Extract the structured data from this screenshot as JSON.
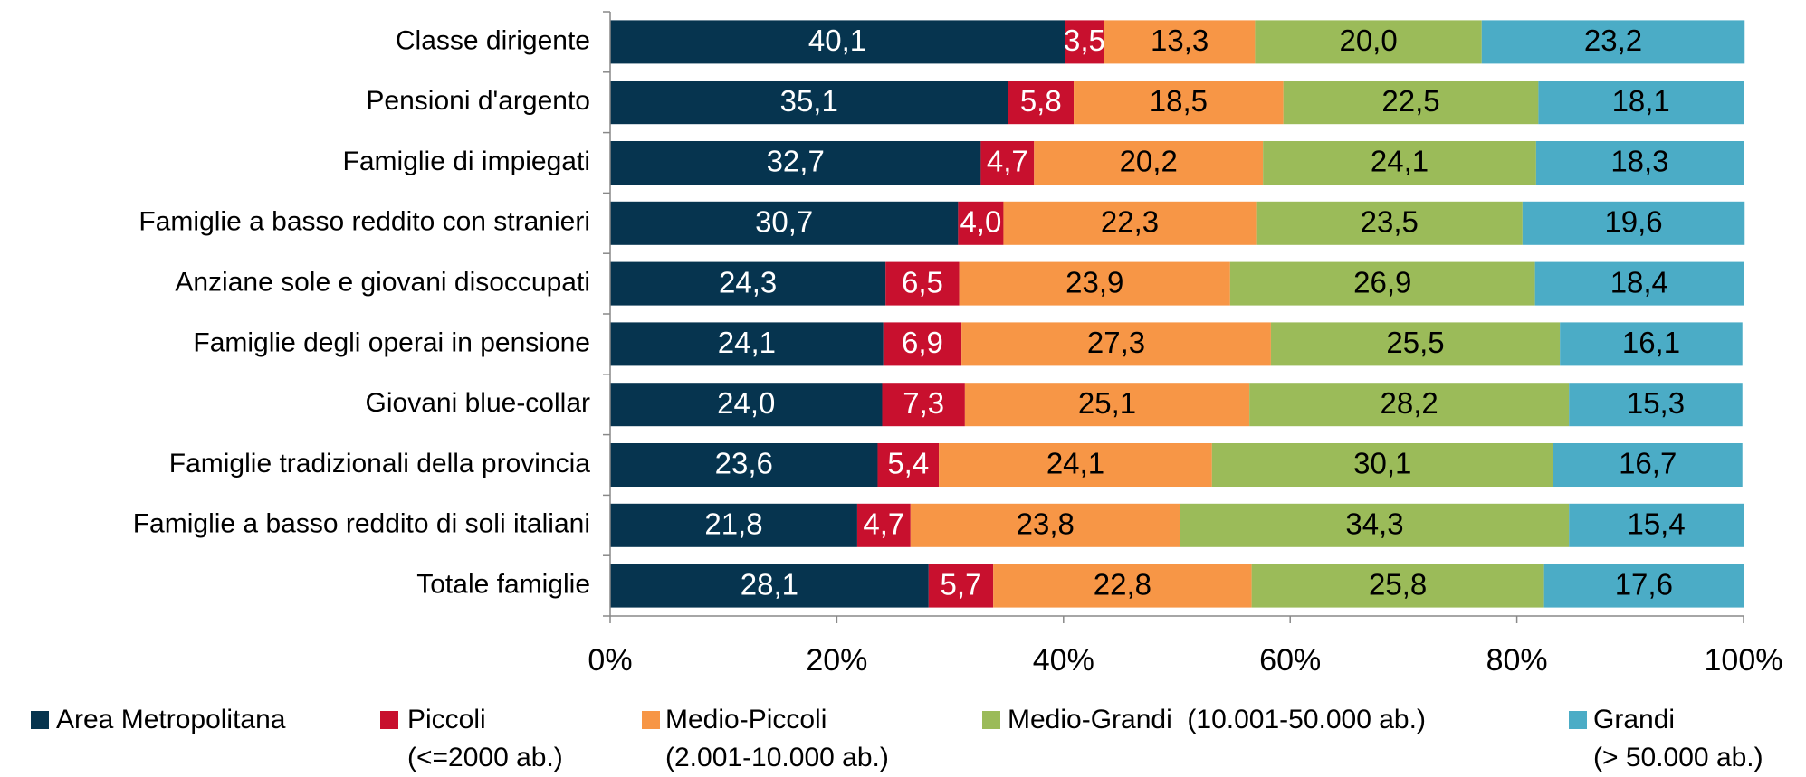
{
  "chart_data": {
    "type": "stacked-bar-horizontal",
    "categories": [
      "Classe dirigente",
      "Pensioni d'argento",
      "Famiglie di impiegati",
      "Famiglie a basso reddito con stranieri",
      "Anziane sole e giovani disoccupati",
      "Famiglie degli operai in pensione",
      "Giovani blue-collar",
      "Famiglie tradizionali della provincia",
      "Famiglie a basso reddito di soli italiani",
      "Totale famiglie"
    ],
    "series": [
      {
        "name": "Area Metropolitana",
        "color": "#06344f",
        "values": [
          40.1,
          35.1,
          32.7,
          30.7,
          24.3,
          24.1,
          24.0,
          23.6,
          21.8,
          28.1
        ],
        "value_labels": [
          "40,1",
          "35,1",
          "32,7",
          "30,7",
          "24,3",
          "24,1",
          "24,0",
          "23,6",
          "21,8",
          "28,1"
        ]
      },
      {
        "name": "Piccoli\n(<=2000 ab.)",
        "color": "#c8102e",
        "values": [
          3.5,
          5.8,
          4.7,
          4.0,
          6.5,
          6.9,
          7.3,
          5.4,
          4.7,
          5.7
        ],
        "value_labels": [
          "3,5",
          "5,8",
          "4,7",
          "4,0",
          "6,5",
          "6,9",
          "7,3",
          "5,4",
          "4,7",
          "5,7"
        ]
      },
      {
        "name": "Medio-Piccoli\n(2.001-10.000 ab.)",
        "color": "#f79646",
        "values": [
          13.3,
          18.5,
          20.2,
          22.3,
          23.9,
          27.3,
          25.1,
          24.1,
          23.8,
          22.8
        ],
        "value_labels": [
          "13,3",
          "18,5",
          "20,2",
          "22,3",
          "23,9",
          "27,3",
          "25,1",
          "24,1",
          "23,8",
          "22,8"
        ]
      },
      {
        "name": "Medio-Grandi  (10.001-50.000 ab.)",
        "color": "#9bbb59",
        "values": [
          20.0,
          22.5,
          24.1,
          23.5,
          26.9,
          25.5,
          28.2,
          30.1,
          34.3,
          25.8
        ],
        "value_labels": [
          "20,0",
          "22,5",
          "24,1",
          "23,5",
          "26,9",
          "25,5",
          "28,2",
          "30,1",
          "34,3",
          "25,8"
        ]
      },
      {
        "name": "Grandi\n(> 50.000 ab.)",
        "color": "#4bacc6",
        "values": [
          23.2,
          18.1,
          18.3,
          19.6,
          18.4,
          16.1,
          15.3,
          16.7,
          15.4,
          17.6
        ],
        "value_labels": [
          "23,2",
          "18,1",
          "18,3",
          "19,6",
          "18,4",
          "16,1",
          "15,3",
          "16,7",
          "15,4",
          "17,6"
        ]
      }
    ],
    "xlim": [
      0,
      100
    ],
    "xticks": [
      {
        "value": 0,
        "label": "0%"
      },
      {
        "value": 20,
        "label": "20%"
      },
      {
        "value": 40,
        "label": "40%"
      },
      {
        "value": 60,
        "label": "60%"
      },
      {
        "value": 80,
        "label": "80%"
      },
      {
        "value": 100,
        "label": "100%"
      }
    ],
    "legend": "bottom"
  }
}
